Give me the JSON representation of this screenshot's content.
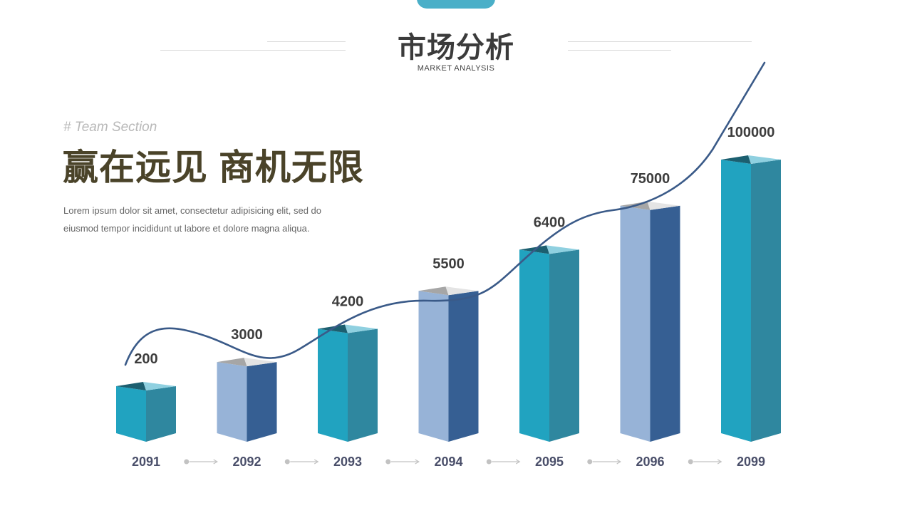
{
  "header": {
    "title": "市场分析",
    "subtitle": "MARKET ANALYSIS"
  },
  "intro": {
    "section_tag": "# Team Section",
    "headline": "赢在远见 商机无限",
    "body_line1": "Lorem ipsum dolor sit amet, consectetur adipisicing elit, sed do",
    "body_line2": "eiusmod tempor incididunt ut labore et dolore magna aliqua."
  },
  "colors": {
    "accent": "#4aafc8",
    "teal_front": "#21a3c0",
    "teal_side": "#2f879f",
    "light_front": "#97b3d7",
    "navy_side": "#365f93",
    "curve": "#3a5a88"
  },
  "chart_data": {
    "type": "bar",
    "categories": [
      "2091",
      "2092",
      "2093",
      "2094",
      "2095",
      "2096",
      "2099"
    ],
    "values": [
      200,
      3000,
      4200,
      5500,
      6400,
      75000,
      100000
    ],
    "style": [
      "teal",
      "light",
      "teal",
      "light",
      "teal",
      "light",
      "teal"
    ],
    "trend_line": true,
    "title": "",
    "xlabel": "",
    "ylabel": ""
  }
}
